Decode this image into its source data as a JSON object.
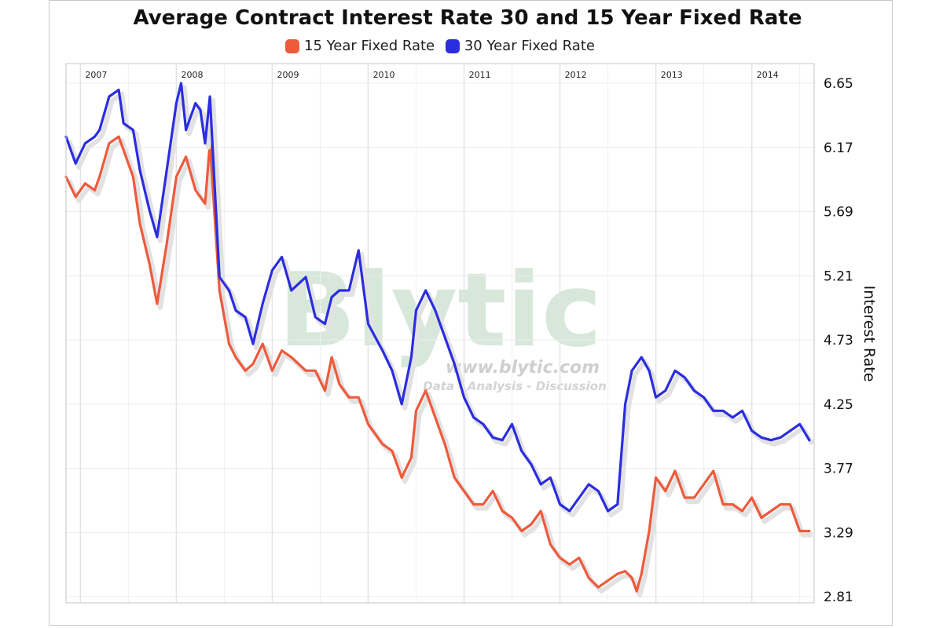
{
  "chart_data": {
    "type": "line",
    "title": "Average Contract Interest Rate 30 and 15 Year Fixed Rate",
    "ylabel": "Interest Rate",
    "ylim": [
      2.81,
      6.65
    ],
    "y_ticks": [
      "6.65",
      "6.17",
      "5.69",
      "5.21",
      "4.73",
      "4.25",
      "3.77",
      "3.29",
      "2.81"
    ],
    "x_tick_labels": [
      "2007",
      "2008",
      "2009",
      "2010",
      "2011",
      "2012",
      "2013",
      "2014"
    ],
    "x_range": [
      2006.85,
      2014.65
    ],
    "grid": true,
    "legend_position": "top-center",
    "series": [
      {
        "name": "15 Year Fixed Rate",
        "color": "#ee5a3c",
        "x": [
          2006.85,
          2006.95,
          2007.05,
          2007.15,
          2007.2,
          2007.3,
          2007.4,
          2007.45,
          2007.55,
          2007.62,
          2007.72,
          2007.8,
          2007.9,
          2008.0,
          2008.1,
          2008.2,
          2008.3,
          2008.35,
          2008.45,
          2008.55,
          2008.62,
          2008.72,
          2008.8,
          2008.9,
          2009.0,
          2009.1,
          2009.2,
          2009.35,
          2009.45,
          2009.55,
          2009.62,
          2009.7,
          2009.8,
          2009.9,
          2010.0,
          2010.15,
          2010.25,
          2010.35,
          2010.45,
          2010.5,
          2010.6,
          2010.7,
          2010.8,
          2010.9,
          2011.0,
          2011.1,
          2011.2,
          2011.3,
          2011.4,
          2011.5,
          2011.6,
          2011.7,
          2011.8,
          2011.9,
          2012.0,
          2012.1,
          2012.2,
          2012.3,
          2012.4,
          2012.5,
          2012.6,
          2012.68,
          2012.75,
          2012.8,
          2012.85,
          2012.93,
          2013.0,
          2013.1,
          2013.2,
          2013.3,
          2013.4,
          2013.5,
          2013.6,
          2013.7,
          2013.8,
          2013.9,
          2014.0,
          2014.1,
          2014.2,
          2014.3,
          2014.4,
          2014.5,
          2014.6
        ],
        "values": [
          5.95,
          5.8,
          5.9,
          5.85,
          5.95,
          6.2,
          6.25,
          6.15,
          5.95,
          5.6,
          5.3,
          5.0,
          5.45,
          5.95,
          6.1,
          5.85,
          5.75,
          6.2,
          5.1,
          4.7,
          4.6,
          4.5,
          4.55,
          4.7,
          4.5,
          4.65,
          4.6,
          4.5,
          4.5,
          4.35,
          4.6,
          4.4,
          4.3,
          4.3,
          4.1,
          3.95,
          3.9,
          3.7,
          3.85,
          4.2,
          4.35,
          4.15,
          3.95,
          3.7,
          3.6,
          3.5,
          3.5,
          3.6,
          3.45,
          3.4,
          3.3,
          3.35,
          3.45,
          3.2,
          3.1,
          3.05,
          3.1,
          2.95,
          2.88,
          2.93,
          2.98,
          3.0,
          2.95,
          2.85,
          2.98,
          3.3,
          3.7,
          3.6,
          3.75,
          3.55,
          3.55,
          3.65,
          3.75,
          3.5,
          3.5,
          3.45,
          3.55,
          3.4,
          3.45,
          3.5,
          3.5,
          3.3,
          3.3
        ]
      },
      {
        "name": "30 Year Fixed Rate",
        "color": "#2b2de0",
        "x": [
          2006.85,
          2006.95,
          2007.05,
          2007.15,
          2007.2,
          2007.3,
          2007.4,
          2007.45,
          2007.55,
          2007.62,
          2007.72,
          2007.8,
          2007.9,
          2008.0,
          2008.05,
          2008.1,
          2008.2,
          2008.25,
          2008.3,
          2008.35,
          2008.45,
          2008.55,
          2008.62,
          2008.72,
          2008.8,
          2008.9,
          2009.0,
          2009.1,
          2009.2,
          2009.35,
          2009.45,
          2009.55,
          2009.62,
          2009.7,
          2009.8,
          2009.9,
          2010.0,
          2010.15,
          2010.25,
          2010.35,
          2010.45,
          2010.5,
          2010.6,
          2010.7,
          2010.8,
          2010.9,
          2011.0,
          2011.1,
          2011.2,
          2011.3,
          2011.4,
          2011.5,
          2011.6,
          2011.7,
          2011.8,
          2011.9,
          2012.0,
          2012.1,
          2012.2,
          2012.3,
          2012.4,
          2012.5,
          2012.6,
          2012.68,
          2012.75,
          2012.8,
          2012.85,
          2012.93,
          2013.0,
          2013.1,
          2013.2,
          2013.3,
          2013.4,
          2013.5,
          2013.6,
          2013.7,
          2013.8,
          2013.9,
          2014.0,
          2014.1,
          2014.2,
          2014.3,
          2014.4,
          2014.5,
          2014.6
        ],
        "values": [
          6.25,
          6.05,
          6.2,
          6.25,
          6.3,
          6.55,
          6.6,
          6.35,
          6.3,
          6.0,
          5.7,
          5.5,
          6.0,
          6.5,
          6.65,
          6.3,
          6.5,
          6.45,
          6.2,
          6.55,
          5.2,
          5.1,
          4.95,
          4.9,
          4.7,
          5.0,
          5.25,
          5.35,
          5.1,
          5.2,
          4.9,
          4.85,
          5.05,
          5.1,
          5.1,
          5.4,
          4.85,
          4.65,
          4.5,
          4.25,
          4.6,
          4.95,
          5.1,
          4.95,
          4.75,
          4.55,
          4.3,
          4.15,
          4.1,
          4.0,
          3.98,
          4.1,
          3.9,
          3.8,
          3.65,
          3.7,
          3.5,
          3.45,
          3.55,
          3.65,
          3.6,
          3.45,
          3.5,
          4.25,
          4.5,
          4.55,
          4.6,
          4.5,
          4.3,
          4.35,
          4.5,
          4.45,
          4.35,
          4.3,
          4.2,
          4.2,
          4.15,
          4.2,
          4.05,
          4.0,
          3.98,
          4.0,
          4.05,
          4.1,
          3.98
        ]
      }
    ],
    "watermark": {
      "brand": "Blytic",
      "url": "www.blytic.com",
      "tagline": "Data - Analysis - Discussion"
    }
  }
}
